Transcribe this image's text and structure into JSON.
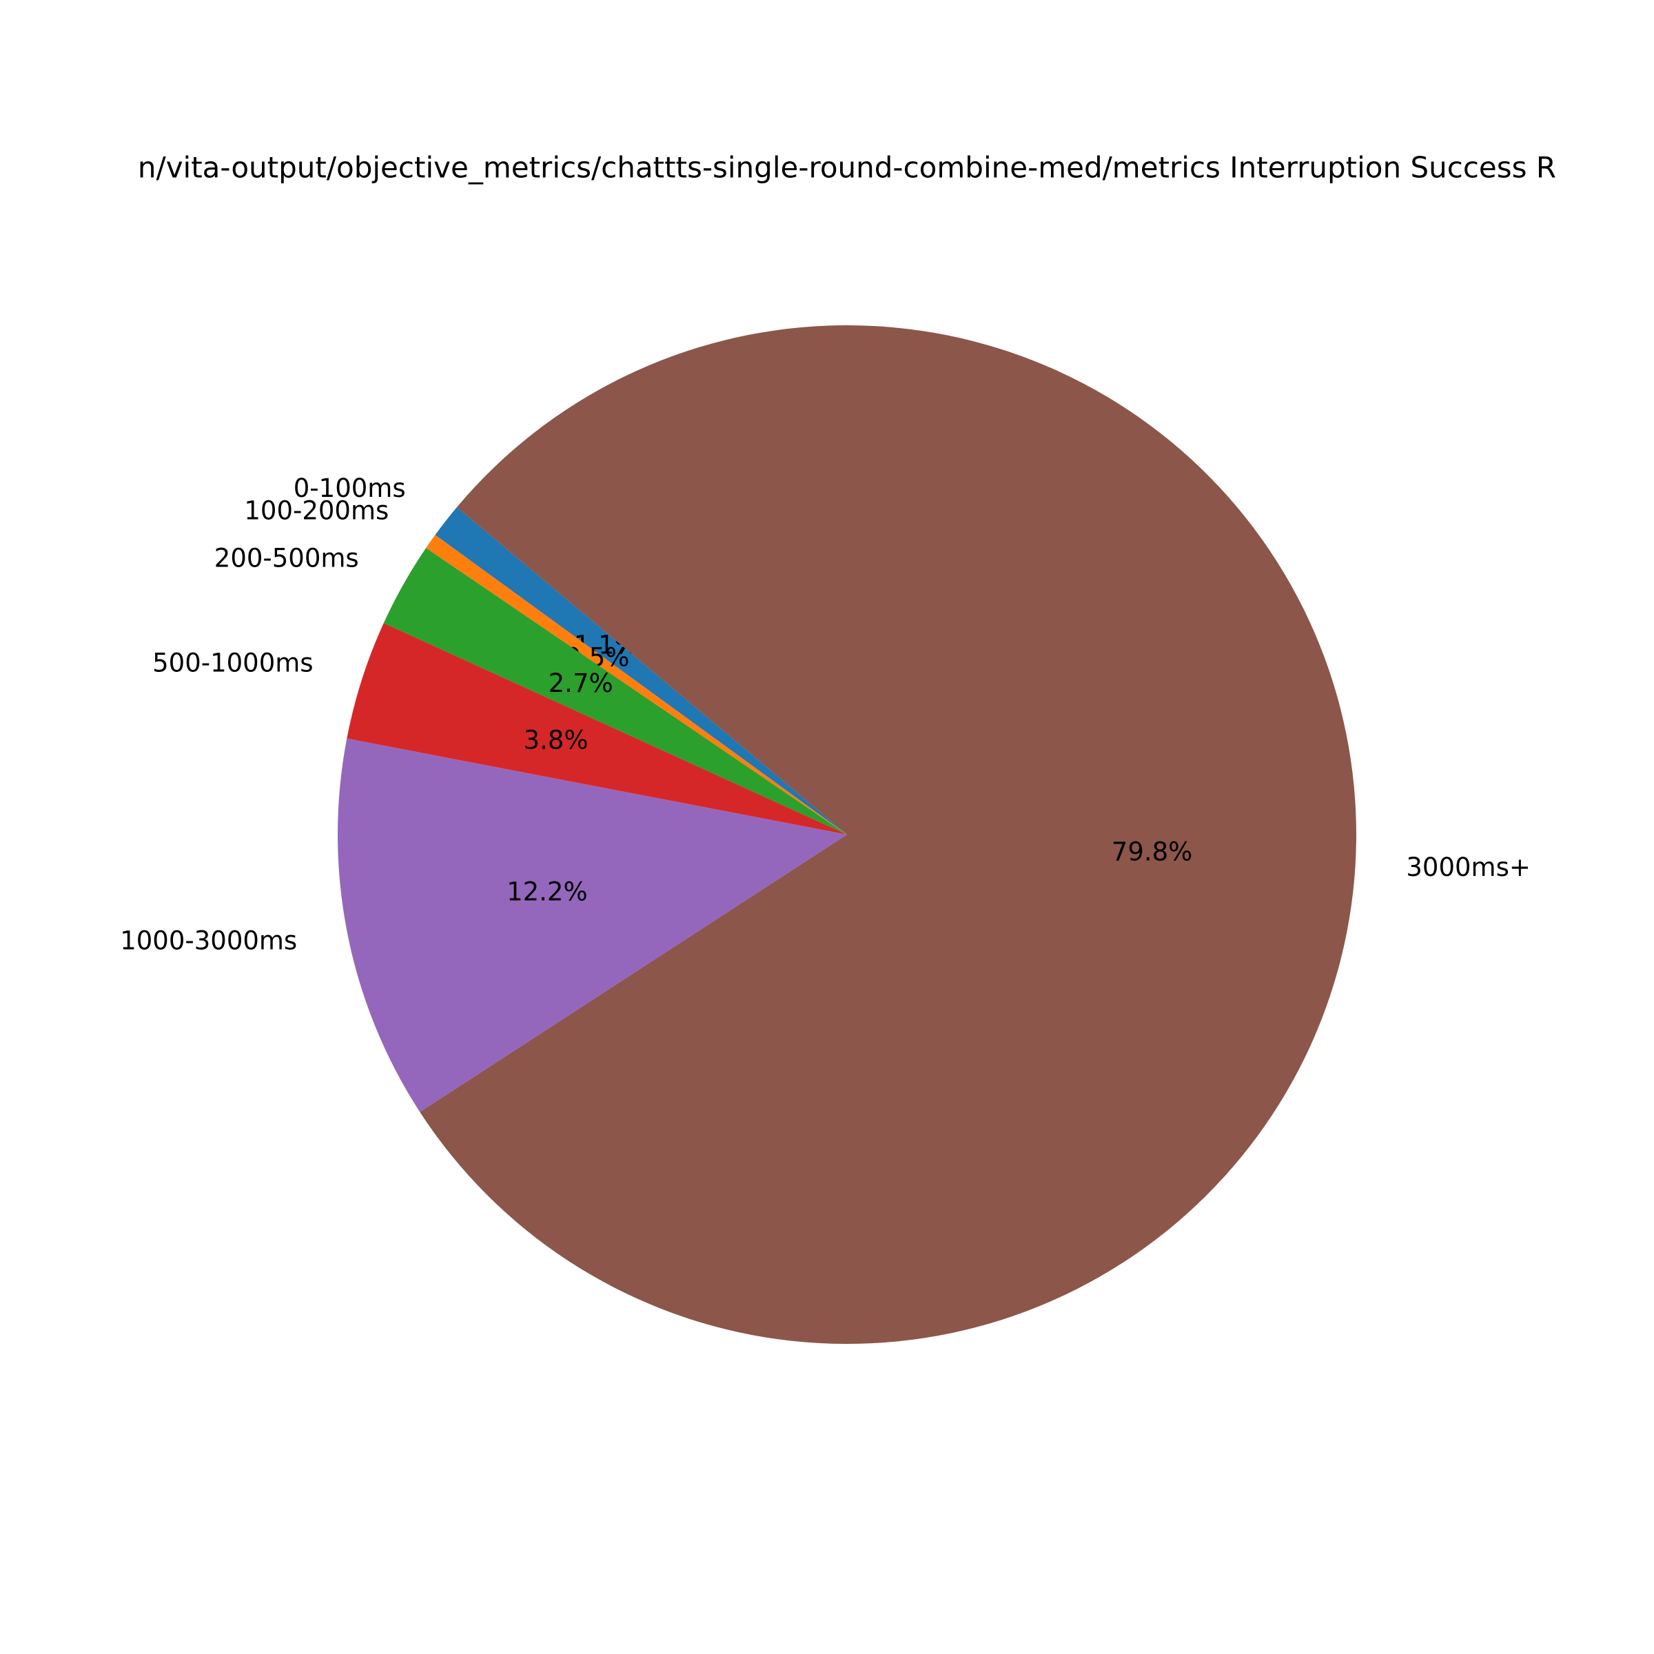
{
  "chart_data": {
    "type": "pie",
    "title": "n/vita-output/objective_metrics/chattts-single-round-combine-med/metrics Interruption Success R",
    "categories": [
      "0-100ms",
      "100-200ms",
      "200-500ms",
      "500-1000ms",
      "1000-3000ms",
      "3000ms+"
    ],
    "values": [
      1.1,
      0.5,
      2.7,
      3.8,
      12.2,
      79.8
    ],
    "value_labels": [
      "1.1%",
      "0.5%",
      "2.7%",
      "3.8%",
      "12.2%",
      "79.8%"
    ],
    "colors": [
      "#1f77b4",
      "#ff7f0e",
      "#2ca02c",
      "#d62728",
      "#9467bd",
      "#8c564b"
    ],
    "start_angle": 140
  }
}
